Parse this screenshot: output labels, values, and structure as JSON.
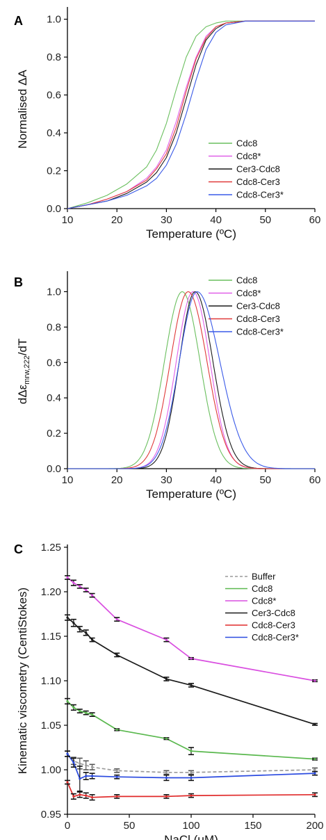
{
  "panels": [
    {
      "letter": "A",
      "chart_data": {
        "type": "line",
        "title": "",
        "xlabel": "Temperature (ºC)",
        "ylabel": "Normalised ΔA",
        "xlim": [
          10,
          60
        ],
        "ylim": [
          0,
          1.05
        ],
        "xticks": [
          "10",
          "20",
          "30",
          "40",
          "50",
          "60"
        ],
        "yticks": [
          "0.0",
          "0.2",
          "0.4",
          "0.6",
          "0.8",
          "1.0"
        ],
        "legend_position": "bottom-right",
        "series": [
          {
            "name": "Cdc8",
            "color": "#6abf5e",
            "x": [
              10,
              14,
              18,
              22,
              26,
              28,
              30,
              32,
              34,
              36,
              38,
              40,
              42,
              46,
              50,
              55,
              60
            ],
            "y": [
              0.0,
              0.03,
              0.07,
              0.13,
              0.22,
              0.31,
              0.45,
              0.63,
              0.8,
              0.91,
              0.96,
              0.98,
              0.99,
              0.99,
              0.99,
              0.99,
              0.99
            ]
          },
          {
            "name": "Cdc8*",
            "color": "#e060e8",
            "x": [
              10,
              14,
              18,
              22,
              26,
              28,
              30,
              32,
              34,
              36,
              38,
              40,
              42,
              46,
              50,
              55,
              60
            ],
            "y": [
              0.0,
              0.02,
              0.05,
              0.09,
              0.16,
              0.22,
              0.31,
              0.46,
              0.64,
              0.8,
              0.91,
              0.96,
              0.98,
              0.99,
              0.99,
              0.99,
              0.99
            ]
          },
          {
            "name": "Cer3-Cdc8",
            "color": "#1a1a1a",
            "x": [
              10,
              14,
              18,
              22,
              26,
              28,
              30,
              32,
              34,
              36,
              38,
              40,
              42,
              46,
              50,
              55,
              60
            ],
            "y": [
              0.0,
              0.02,
              0.04,
              0.08,
              0.14,
              0.19,
              0.27,
              0.4,
              0.58,
              0.76,
              0.89,
              0.95,
              0.98,
              0.99,
              0.99,
              0.99,
              0.99
            ]
          },
          {
            "name": "Cdc8-Cer3",
            "color": "#e03a3a",
            "x": [
              10,
              14,
              18,
              22,
              26,
              28,
              30,
              32,
              34,
              36,
              38,
              40,
              42,
              46,
              50,
              55,
              60
            ],
            "y": [
              0.0,
              0.02,
              0.05,
              0.09,
              0.15,
              0.21,
              0.29,
              0.43,
              0.62,
              0.79,
              0.9,
              0.96,
              0.98,
              0.99,
              0.99,
              0.99,
              0.99
            ]
          },
          {
            "name": "Cdc8-Cer3*",
            "color": "#3a5ae8",
            "x": [
              10,
              14,
              18,
              22,
              26,
              28,
              30,
              32,
              34,
              36,
              38,
              40,
              42,
              46,
              50,
              55,
              60
            ],
            "y": [
              0.0,
              0.02,
              0.04,
              0.07,
              0.12,
              0.16,
              0.23,
              0.34,
              0.5,
              0.68,
              0.84,
              0.93,
              0.97,
              0.99,
              0.99,
              0.99,
              0.99
            ]
          }
        ]
      }
    },
    {
      "letter": "B",
      "chart_data": {
        "type": "line",
        "title": "",
        "xlabel": "Temperature (ºC)",
        "ylabel": "dΔε",
        "ylabel_sub": "mrw,222",
        "ylabel_end": "/dT",
        "xlim": [
          10,
          60
        ],
        "ylim": [
          0,
          1.1
        ],
        "xticks": [
          "10",
          "20",
          "30",
          "40",
          "50",
          "60"
        ],
        "yticks": [
          "0.0",
          "0.2",
          "0.4",
          "0.6",
          "0.8",
          "1.0"
        ],
        "legend_position": "top-right",
        "series": [
          {
            "name": "Cdc8",
            "color": "#6abf5e",
            "center": 33.2,
            "width_left": 3.6,
            "width_right": 3.6
          },
          {
            "name": "Cdc8*",
            "color": "#e060e8",
            "center": 35.4,
            "width_left": 3.4,
            "width_right": 3.4
          },
          {
            "name": "Cer3-Cdc8",
            "color": "#1a1a1a",
            "center": 35.8,
            "width_left": 3.2,
            "width_right": 3.6
          },
          {
            "name": "Cdc8-Cer3",
            "color": "#e03a3a",
            "center": 34.4,
            "width_left": 3.6,
            "width_right": 3.8
          },
          {
            "name": "Cdc8-Cer3*",
            "color": "#3a5ae8",
            "center": 36.2,
            "width_left": 3.6,
            "width_right": 4.6
          }
        ]
      }
    },
    {
      "letter": "C",
      "chart_data": {
        "type": "line",
        "title": "",
        "xlabel": "NaCl (μM)",
        "ylabel": "Kinematic viscometry (CentiStokes)",
        "xlim": [
          0,
          200
        ],
        "ylim": [
          0.95,
          1.25
        ],
        "xticks": [
          "0",
          "50",
          "100",
          "150",
          "200"
        ],
        "yticks": [
          "0.95",
          "1.00",
          "1.05",
          "1.10",
          "1.15",
          "1.20",
          "1.25"
        ],
        "legend_position": "top-right",
        "series": [
          {
            "name": "Buffer",
            "color": "#9a9a9a",
            "dashed": true,
            "x": [
              0,
              5,
              10,
              15,
              20,
              40,
              80,
              100,
              200
            ],
            "y": [
              1.018,
              1.01,
              1.007,
              1.005,
              1.003,
              0.999,
              0.997,
              0.997,
              1.0
            ],
            "err": [
              0.003,
              0.004,
              0.006,
              0.005,
              0.003,
              0.002,
              0.002,
              0.002,
              0.002
            ]
          },
          {
            "name": "Cdc8",
            "color": "#5ab84e",
            "dashed": false,
            "x": [
              0,
              5,
              10,
              15,
              20,
              40,
              80,
              100,
              200
            ],
            "y": [
              1.077,
              1.07,
              1.066,
              1.064,
              1.062,
              1.045,
              1.035,
              1.021,
              1.012
            ],
            "err": [
              0.003,
              0.003,
              0.002,
              0.002,
              0.002,
              0.001,
              0.001,
              0.004,
              0.001
            ]
          },
          {
            "name": "Cdc8*",
            "color": "#d94ee0",
            "dashed": false,
            "x": [
              0,
              5,
              10,
              15,
              20,
              40,
              80,
              100,
              200
            ],
            "y": [
              1.216,
              1.21,
              1.206,
              1.202,
              1.196,
              1.169,
              1.146,
              1.125,
              1.1
            ],
            "err": [
              0.002,
              0.003,
              0.002,
              0.002,
              0.002,
              0.002,
              0.002,
              0.001,
              0.001
            ]
          },
          {
            "name": "Cer3-Cdc8",
            "color": "#1a1a1a",
            "dashed": false,
            "x": [
              0,
              5,
              10,
              15,
              20,
              40,
              80,
              100,
              200
            ],
            "y": [
              1.171,
              1.165,
              1.158,
              1.154,
              1.146,
              1.129,
              1.102,
              1.095,
              1.051
            ],
            "err": [
              0.003,
              0.004,
              0.003,
              0.003,
              0.002,
              0.002,
              0.002,
              0.002,
              0.001
            ]
          },
          {
            "name": "Cdc8-Cer3",
            "color": "#e02a2a",
            "dashed": false,
            "x": [
              0,
              5,
              10,
              15,
              20,
              40,
              80,
              100,
              200
            ],
            "y": [
              0.986,
              0.97,
              0.972,
              0.971,
              0.969,
              0.97,
              0.97,
              0.971,
              0.972
            ],
            "err": [
              0.002,
              0.003,
              0.003,
              0.003,
              0.003,
              0.002,
              0.002,
              0.002,
              0.002
            ]
          },
          {
            "name": "Cdc8-Cer3*",
            "color": "#2a4ae0",
            "dashed": false,
            "x": [
              0,
              5,
              10,
              15,
              20,
              40,
              80,
              100,
              200
            ],
            "y": [
              1.018,
              1.008,
              0.99,
              0.993,
              0.993,
              0.992,
              0.991,
              0.991,
              0.996
            ],
            "err": [
              0.003,
              0.005,
              0.014,
              0.004,
              0.003,
              0.002,
              0.003,
              0.003,
              0.002
            ]
          }
        ]
      }
    }
  ]
}
